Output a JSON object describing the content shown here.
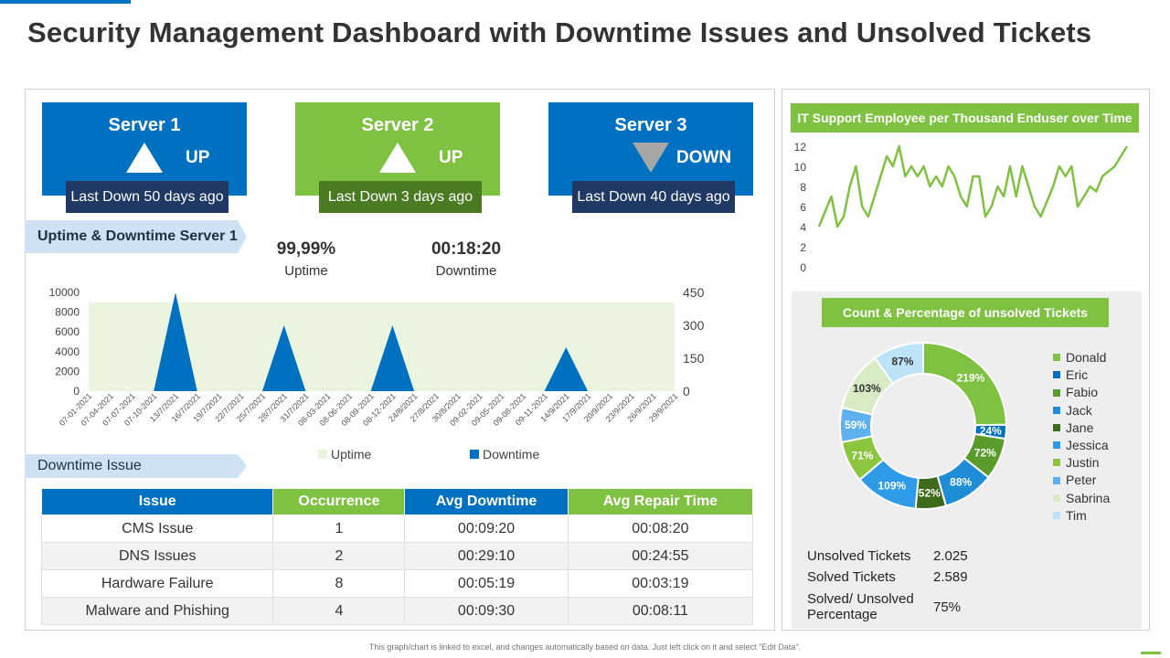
{
  "title": "Security Management Dashboard with Downtime Issues and Unsolved Tickets",
  "servers": [
    {
      "name": "Server 1",
      "status": "UP",
      "last_down": "Last Down 50 days ago",
      "color": "#0070c0",
      "badge_color": "#1f3864"
    },
    {
      "name": "Server 2",
      "status": "UP",
      "last_down": "Last Down 3 days ago",
      "color": "#7fc241",
      "badge_color": "#4a7a22"
    },
    {
      "name": "Server 3",
      "status": "DOWN",
      "last_down": "Last Down 40 days ago",
      "color": "#0070c0",
      "badge_color": "#1f3864"
    }
  ],
  "uptime_section": {
    "label": "Uptime & Downtime Server 1",
    "uptime_value": "99,99%",
    "uptime_label": "Uptime",
    "downtime_value": "00:18:20",
    "downtime_label": "Downtime"
  },
  "downtime_issue_label": "Downtime Issue",
  "issues_table": {
    "headers": [
      "Issue",
      "Occurrence",
      "Avg Downtime",
      "Avg Repair Time"
    ],
    "header_colors": [
      "#0070c0",
      "#7fc241",
      "#0070c0",
      "#7fc241"
    ],
    "rows": [
      [
        "CMS Issue",
        "1",
        "00:09:20",
        "00:08:20"
      ],
      [
        "DNS Issues",
        "2",
        "00:29:10",
        "00:24:55"
      ],
      [
        "Hardware Failure",
        "8",
        "00:05:19",
        "00:03:19"
      ],
      [
        "Malware and Phishing",
        "4",
        "00:09:30",
        "00:08:11"
      ]
    ]
  },
  "it_support_title": "IT Support Employee per Thousand Enduser over Time",
  "tickets_title": "Count & Percentage of unsolved Tickets",
  "ticket_stats": {
    "unsolved_label": "Unsolved Tickets",
    "unsolved_value": "2.025",
    "solved_label": "Solved Tickets",
    "solved_value": "2.589",
    "pct_label_1": "Solved/ Unsolved",
    "pct_label_2": "Percentage",
    "pct_value": "75%"
  },
  "footnote": "This graph/chart is linked to excel, and changes automatically based on data. Just left click on it and select \"Edit Data\".",
  "chart_data": [
    {
      "type": "area",
      "categories": [
        "07-01-2021",
        "07-04-2021",
        "07-07-2021",
        "07-10-2021",
        "13/7/2021",
        "16/7/2021",
        "19/7/2021",
        "22/7/2021",
        "25/7/2021",
        "28/7/2021",
        "31/7/2021",
        "08-03-2021",
        "08-06-2021",
        "08-09-2021",
        "08-12-2021",
        "24/8/2021",
        "27/8/2021",
        "30/8/2021",
        "09-02-2021",
        "09-05-2021",
        "09-08-2021",
        "09-11-2021",
        "14/9/2021",
        "17/9/2021",
        "20/9/2021",
        "23/9/2021",
        "26/9/2021",
        "29/9/2021"
      ],
      "series": [
        {
          "name": "Uptime",
          "axis": "left",
          "color": "#eaf4de",
          "values": [
            9000,
            9000,
            9000,
            9000,
            9000,
            9000,
            9000,
            9000,
            9000,
            9000,
            9000,
            9000,
            9000,
            9000,
            9000,
            9000,
            9000,
            9000,
            9000,
            9000,
            9000,
            9000,
            9000,
            9000,
            9000,
            9000,
            9000,
            9000
          ]
        },
        {
          "name": "Downtime",
          "axis": "right",
          "color": "#0070c0",
          "values": [
            0,
            0,
            0,
            0,
            450,
            0,
            0,
            0,
            0,
            300,
            0,
            0,
            0,
            0,
            300,
            0,
            0,
            0,
            0,
            0,
            0,
            0,
            200,
            0,
            0,
            0,
            0,
            0
          ]
        }
      ],
      "y_left_ticks": [
        "10000",
        "8000",
        "6000",
        "4000",
        "2000",
        "0"
      ],
      "y_right_ticks": [
        "450",
        "300",
        "150",
        "0"
      ],
      "ylim_left": [
        0,
        10000
      ],
      "ylim_right": [
        0,
        450
      ],
      "legend": "bottom"
    },
    {
      "type": "line",
      "title": "IT Support Employee per Thousand Enduser over Time",
      "color": "#7fc241",
      "y_ticks": [
        "12",
        "10",
        "8",
        "6",
        "4",
        "2",
        "0"
      ],
      "ylim": [
        0,
        12
      ],
      "values": [
        4,
        5.5,
        7,
        4,
        5,
        8,
        10,
        6,
        5,
        7,
        9,
        11,
        10,
        12,
        9,
        10,
        9,
        10,
        8,
        9,
        8,
        10,
        9,
        7,
        6,
        9,
        9,
        5,
        6,
        8,
        7,
        10,
        7,
        10,
        8,
        6,
        5,
        6.5,
        8,
        10,
        9,
        10,
        6,
        7,
        8,
        7.5,
        9,
        9.5,
        10,
        11,
        12
      ]
    },
    {
      "type": "pie",
      "title": "Count & Percentage of unsolved Tickets",
      "labels": [
        "Donald",
        "Eric",
        "Fabio",
        "Jack",
        "Jane",
        "Jessica",
        "Justin",
        "Peter",
        "Sabrina",
        "Tim"
      ],
      "values": [
        219,
        24,
        72,
        88,
        52,
        109,
        71,
        59,
        103,
        87
      ],
      "display": [
        "219%",
        "24%",
        "72%",
        "88%",
        "52%",
        "109%",
        "71%",
        "59%",
        "103%",
        "87%"
      ],
      "colors": [
        "#7fc241",
        "#0070c0",
        "#5b9b2c",
        "#1f8dd6",
        "#3d6b1c",
        "#2e9be8",
        "#8cc63f",
        "#5fb0ee",
        "#d7ecc4",
        "#bde3f8"
      ],
      "legend": "right"
    }
  ]
}
